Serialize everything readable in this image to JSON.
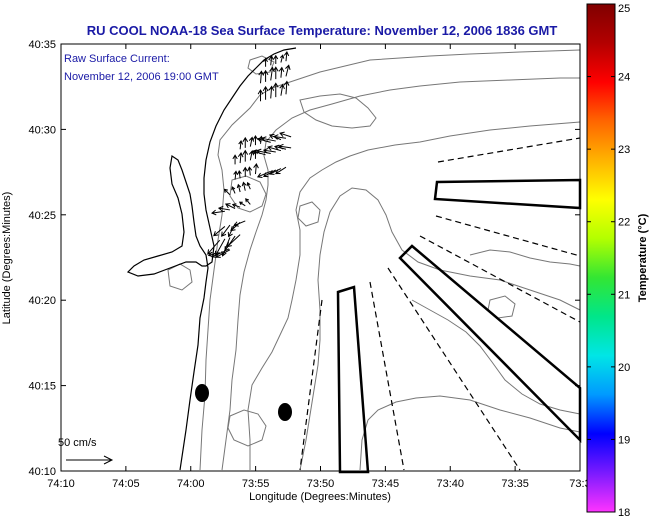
{
  "chart_data": {
    "type": "scatter",
    "title": "RU COOL  NOAA-18  Sea Surface Temperature:  November 12, 2006 1836 GMT",
    "annotation_lines": [
      "Raw Surface Current:",
      "November 12, 2006 19:00 GMT"
    ],
    "xlabel": "Longitude (Degrees:Minutes)",
    "ylabel": "Latitude (Degrees:Minutes)",
    "x_ticks": [
      "74:10",
      "74:05",
      "74:00",
      "73:55",
      "73:50",
      "73:45",
      "73:40",
      "73:35",
      "73:3"
    ],
    "y_ticks": [
      "40:35",
      "40:30",
      "40:25",
      "40:20",
      "40:15",
      "40:10"
    ],
    "xlim": [
      -74.1667,
      -73.5
    ],
    "ylim": [
      40.1667,
      40.5833
    ],
    "colorbar": {
      "label": "Temperature (°C)",
      "ticks": [
        "25",
        "24",
        "23",
        "22",
        "21",
        "20",
        "19",
        "18"
      ],
      "range": [
        18,
        25
      ],
      "colors": [
        "#ff33ff",
        "#7a1aff",
        "#0000ff",
        "#0099ff",
        "#00e6e6",
        "#00e68a",
        "#33e633",
        "#b3ff00",
        "#ffff00",
        "#ffb300",
        "#ff6600",
        "#ff0000",
        "#b30000",
        "#800000"
      ]
    },
    "scale_label": "50 cm/s",
    "grid": false,
    "colors": {
      "title": "#1a1aa6",
      "frame": "#000000",
      "contour": "#777777",
      "coast": "#000000"
    },
    "vectors": [
      {
        "x": -73.9628,
        "y": 40.3798,
        "u": -12,
        "v": -3
      },
      {
        "x": -73.9562,
        "y": 40.3811,
        "u": -14,
        "v": -6
      },
      {
        "x": -73.9497,
        "y": 40.3825,
        "u": -15,
        "v": -8
      },
      {
        "x": -73.9628,
        "y": 40.3919,
        "u": -13,
        "v": -15
      },
      {
        "x": -73.9562,
        "y": 40.3932,
        "u": -10,
        "v": -18
      },
      {
        "x": -73.9497,
        "y": 40.3946,
        "u": -8,
        "v": -20
      },
      {
        "x": -73.9431,
        "y": 40.3959,
        "u": -11,
        "v": -16
      },
      {
        "x": -73.9366,
        "y": 40.3973,
        "u": -14,
        "v": -13
      },
      {
        "x": -73.9562,
        "y": 40.4053,
        "u": -12,
        "v": -10
      },
      {
        "x": -73.9497,
        "y": 40.4066,
        "u": -9,
        "v": -12
      },
      {
        "x": -73.9431,
        "y": 40.408,
        "u": -7,
        "v": -14
      },
      {
        "x": -73.9366,
        "y": 40.4093,
        "u": -10,
        "v": -9
      },
      {
        "x": -73.93,
        "y": 40.4107,
        "u": -12,
        "v": -5
      },
      {
        "x": -73.9562,
        "y": 40.4201,
        "u": -14,
        "v": -2
      },
      {
        "x": -73.9497,
        "y": 40.4214,
        "u": -12,
        "v": 2
      },
      {
        "x": -73.9431,
        "y": 40.4227,
        "u": -10,
        "v": 5
      },
      {
        "x": -73.9366,
        "y": 40.4241,
        "u": -8,
        "v": 3
      },
      {
        "x": -73.93,
        "y": 40.4254,
        "u": -6,
        "v": 4
      },
      {
        "x": -73.9235,
        "y": 40.4268,
        "u": -5,
        "v": 6
      },
      {
        "x": -73.9497,
        "y": 40.4362,
        "u": -6,
        "v": 6
      },
      {
        "x": -73.9431,
        "y": 40.4375,
        "u": -3,
        "v": 7
      },
      {
        "x": -73.9366,
        "y": 40.4389,
        "u": -2,
        "v": 8
      },
      {
        "x": -73.93,
        "y": 40.4402,
        "u": -2,
        "v": 9
      },
      {
        "x": -73.9235,
        "y": 40.4416,
        "u": -3,
        "v": 7
      },
      {
        "x": -73.9431,
        "y": 40.451,
        "u": 1,
        "v": 9
      },
      {
        "x": -73.9366,
        "y": 40.4523,
        "u": -1,
        "v": 8
      },
      {
        "x": -73.93,
        "y": 40.4537,
        "u": 0,
        "v": 10
      },
      {
        "x": -73.9235,
        "y": 40.455,
        "u": -1,
        "v": 9
      },
      {
        "x": -73.9169,
        "y": 40.4564,
        "u": 1,
        "v": 11
      },
      {
        "x": -73.9431,
        "y": 40.4658,
        "u": 0,
        "v": 10
      },
      {
        "x": -73.9366,
        "y": 40.4671,
        "u": 1,
        "v": 11
      },
      {
        "x": -73.93,
        "y": 40.4685,
        "u": 0,
        "v": 12
      },
      {
        "x": -73.9235,
        "y": 40.4698,
        "u": 2,
        "v": 10
      },
      {
        "x": -73.9169,
        "y": 40.4712,
        "u": 0,
        "v": 9
      },
      {
        "x": -73.9366,
        "y": 40.4806,
        "u": 1,
        "v": 9
      },
      {
        "x": -73.93,
        "y": 40.4819,
        "u": 0,
        "v": 11
      },
      {
        "x": -73.9235,
        "y": 40.4832,
        "u": 2,
        "v": 10
      },
      {
        "x": -73.9169,
        "y": 40.4846,
        "u": 0,
        "v": 10
      },
      {
        "x": -73.9104,
        "y": 40.4859,
        "u": 1,
        "v": 8
      },
      {
        "x": -73.8973,
        "y": 40.4591,
        "u": -14,
        "v": -6
      },
      {
        "x": -73.8908,
        "y": 40.4604,
        "u": -13,
        "v": -7
      },
      {
        "x": -73.8842,
        "y": 40.4618,
        "u": -12,
        "v": -6
      },
      {
        "x": -73.8777,
        "y": 40.4631,
        "u": -11,
        "v": -7
      },
      {
        "x": -73.9039,
        "y": 40.4752,
        "u": -14,
        "v": 4
      },
      {
        "x": -73.8973,
        "y": 40.4765,
        "u": -15,
        "v": 3
      },
      {
        "x": -73.8908,
        "y": 40.4779,
        "u": -13,
        "v": 2
      },
      {
        "x": -73.8842,
        "y": 40.4792,
        "u": -14,
        "v": 4
      },
      {
        "x": -73.8777,
        "y": 40.4806,
        "u": -12,
        "v": 3
      },
      {
        "x": -73.8711,
        "y": 40.4819,
        "u": -13,
        "v": 2
      },
      {
        "x": -73.8973,
        "y": 40.4873,
        "u": -14,
        "v": 4
      },
      {
        "x": -73.8908,
        "y": 40.4886,
        "u": -15,
        "v": 3
      },
      {
        "x": -73.8842,
        "y": 40.49,
        "u": -12,
        "v": 5
      },
      {
        "x": -73.8777,
        "y": 40.4913,
        "u": -13,
        "v": 2
      },
      {
        "x": -73.8711,
        "y": 40.4927,
        "u": -12,
        "v": 4
      },
      {
        "x": -73.9104,
        "y": 40.5275,
        "u": 0,
        "v": 12
      },
      {
        "x": -73.9039,
        "y": 40.5289,
        "u": 0,
        "v": 14
      },
      {
        "x": -73.8973,
        "y": 40.5302,
        "u": 1,
        "v": 13
      },
      {
        "x": -73.8908,
        "y": 40.5315,
        "u": 0,
        "v": 15
      },
      {
        "x": -73.8842,
        "y": 40.5329,
        "u": 2,
        "v": 12
      },
      {
        "x": -73.8777,
        "y": 40.5342,
        "u": 1,
        "v": 14
      },
      {
        "x": -73.9104,
        "y": 40.545,
        "u": 1,
        "v": 13
      },
      {
        "x": -73.9039,
        "y": 40.5464,
        "u": 0,
        "v": 12
      },
      {
        "x": -73.8973,
        "y": 40.5477,
        "u": 2,
        "v": 14
      },
      {
        "x": -73.8908,
        "y": 40.549,
        "u": 0,
        "v": 13
      },
      {
        "x": -73.8842,
        "y": 40.5504,
        "u": 1,
        "v": 11
      },
      {
        "x": -73.8777,
        "y": 40.5517,
        "u": 3,
        "v": 12
      },
      {
        "x": -73.9039,
        "y": 40.5611,
        "u": 0,
        "v": 9
      },
      {
        "x": -73.8973,
        "y": 40.5625,
        "u": 1,
        "v": 10
      },
      {
        "x": -73.8908,
        "y": 40.5638,
        "u": 0,
        "v": 9
      },
      {
        "x": -73.8842,
        "y": 40.5652,
        "u": 2,
        "v": 8
      },
      {
        "x": -73.8777,
        "y": 40.5665,
        "u": 1,
        "v": 10
      }
    ]
  }
}
